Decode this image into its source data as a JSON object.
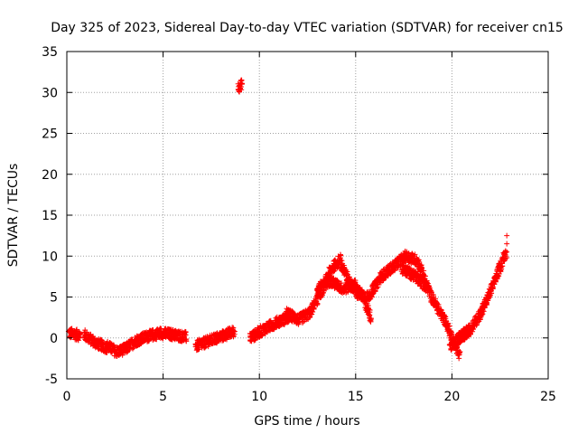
{
  "chart_data": {
    "type": "scatter",
    "title": "Day 325 of 2023, Sidereal Day-to-day VTEC variation (SDTVAR) for receiver cn15",
    "xlabel": "GPS time / hours",
    "ylabel": "SDTVAR / TECUs",
    "xlim": [
      0,
      25
    ],
    "ylim": [
      -5,
      35
    ],
    "xticks": [
      0,
      5,
      10,
      15,
      20,
      25
    ],
    "yticks": [
      -5,
      0,
      5,
      10,
      15,
      20,
      25,
      30,
      35
    ],
    "grid": true,
    "marker": "+",
    "color": "#ff0000",
    "series": [
      {
        "name": "SDTVAR",
        "segments": [
          {
            "t0": 0.1,
            "t1": 0.7,
            "y": [
              0.6,
              0.3
            ]
          },
          {
            "t0": 0.9,
            "t1": 2.1,
            "y": [
              0.4,
              -0.6,
              -1.2
            ]
          },
          {
            "t0": 2.1,
            "t1": 3.1,
            "y": [
              -1.0,
              -1.7,
              -1.3
            ]
          },
          {
            "t0": 3.1,
            "t1": 4.2,
            "y": [
              -1.2,
              -0.3,
              0.2
            ]
          },
          {
            "t0": 4.2,
            "t1": 6.2,
            "y": [
              0.2,
              0.6,
              0.4,
              0.1
            ]
          },
          {
            "t0": 6.7,
            "t1": 8.7,
            "y": [
              -1.0,
              -0.4,
              0.2,
              0.8
            ]
          },
          {
            "t0": 8.9,
            "t1": 9.1,
            "y": [
              30.6,
              31.0
            ]
          },
          {
            "t0": 9.5,
            "t1": 11.6,
            "y": [
              0.0,
              1.0,
              1.9,
              2.6
            ]
          },
          {
            "t0": 11.4,
            "t1": 12.7,
            "y": [
              3.0,
              2.2,
              3.2
            ]
          },
          {
            "t0": 12.7,
            "t1": 14.2,
            "y": [
              3.5,
              5.5,
              8.3,
              9.6
            ]
          },
          {
            "t0": 13.0,
            "t1": 15.0,
            "y": [
              6.0,
              7.0,
              6.0,
              6.5
            ]
          },
          {
            "t0": 14.2,
            "t1": 15.8,
            "y": [
              9.2,
              6.5,
              5.5,
              2.5
            ]
          },
          {
            "t0": 15.0,
            "t1": 17.0,
            "y": [
              5.5,
              5.0,
              7.5,
              8.8
            ]
          },
          {
            "t0": 17.0,
            "t1": 18.2,
            "y": [
              8.8,
              10.0,
              9.5
            ]
          },
          {
            "t0": 17.4,
            "t1": 18.8,
            "y": [
              8.5,
              7.5,
              6.0
            ]
          },
          {
            "t0": 18.2,
            "t1": 20.4,
            "y": [
              9.5,
              5.0,
              2.0,
              -2.2
            ]
          },
          {
            "t0": 19.9,
            "t1": 20.9,
            "y": [
              -1.0,
              0.0,
              1.0
            ]
          },
          {
            "t0": 20.4,
            "t1": 21.5,
            "y": [
              0.0,
              1.0,
              3.0
            ]
          },
          {
            "t0": 21.5,
            "t1": 22.8,
            "y": [
              3.0,
              6.5,
              10.5
            ]
          }
        ],
        "outliers": [
          [
            22.85,
            12.5
          ],
          [
            22.85,
            11.5
          ],
          [
            22.85,
            10.5
          ],
          [
            22.85,
            9.8
          ]
        ]
      }
    ]
  }
}
